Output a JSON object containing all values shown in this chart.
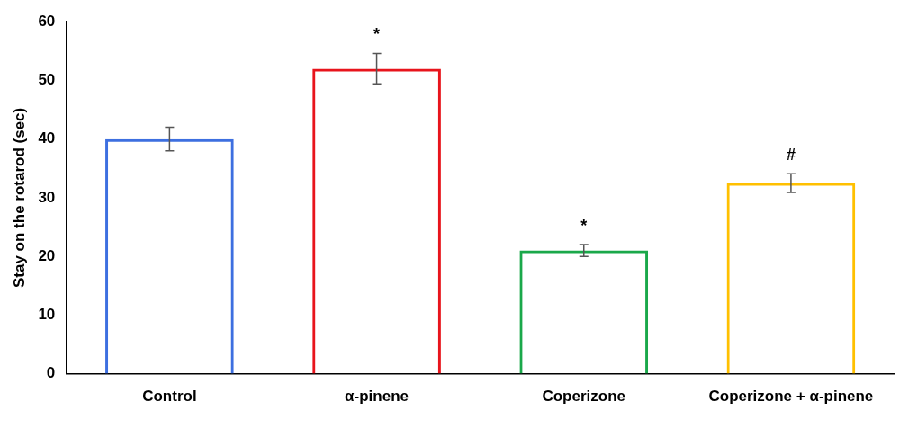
{
  "chart_data": {
    "type": "bar",
    "ylabel": "Stay on the rotarod (sec)",
    "categories": [
      "Control",
      "α-pinene",
      "Coperizone",
      "Coperizone + α-pinene"
    ],
    "values": [
      40,
      52,
      21,
      32.5
    ],
    "colors": [
      "#3d6fe0",
      "#e8141c",
      "#1aa84a",
      "#ffc000"
    ],
    "errors": [
      2,
      2.6,
      1,
      1.6
    ],
    "ylim": [
      0,
      60
    ],
    "yticks": [
      0,
      10,
      20,
      30,
      40,
      50,
      60
    ],
    "grid": false,
    "legend": false,
    "annotations": [
      {
        "text": "*",
        "x": "α-pinene",
        "y": 52
      },
      {
        "text": "*",
        "x": "Coperizone",
        "y": 21
      },
      {
        "text": "#",
        "x": "Coperizone + α-pinene",
        "y": 32.5
      }
    ]
  }
}
